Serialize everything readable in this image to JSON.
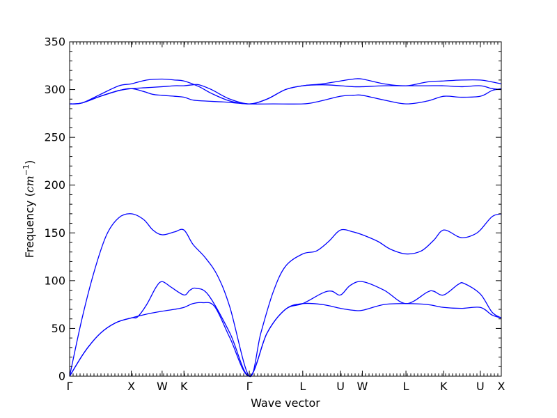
{
  "chart_data": {
    "type": "line",
    "xlabel": "Wave vector",
    "ylabel": "Frequency (",
    "ylabel_math": "cm",
    "ylabel_sup": "−1",
    "ylabel_close": ")",
    "ylim": [
      0,
      350
    ],
    "yticks": [
      0,
      50,
      100,
      150,
      200,
      250,
      300,
      350
    ],
    "ytick_labels": [
      "0",
      "50",
      "100",
      "150",
      "200",
      "250",
      "300",
      "350"
    ],
    "xlim": [
      0,
      7.0
    ],
    "xticks": [
      {
        "label": "Γ",
        "x": 0.0
      },
      {
        "label": "X",
        "x": 1.0
      },
      {
        "label": "W",
        "x": 1.5
      },
      {
        "label": "K",
        "x": 1.854
      },
      {
        "label": "Γ",
        "x": 2.914
      },
      {
        "label": "L",
        "x": 3.78
      },
      {
        "label": "U",
        "x": 4.393
      },
      {
        "label": "W",
        "x": 4.747
      },
      {
        "label": "L",
        "x": 5.454
      },
      {
        "label": "K",
        "x": 6.066
      },
      {
        "label": "U",
        "x": 6.66
      },
      {
        "label": "X",
        "x": 7.0
      }
    ],
    "grid": false,
    "line_color": "#0000ff",
    "series": [
      {
        "values": [
          [
            0,
            0
          ],
          [
            0.25,
            26
          ],
          [
            0.5,
            45
          ],
          [
            0.75,
            56
          ],
          [
            1.0,
            61
          ],
          [
            1.25,
            65
          ],
          [
            1.5,
            68
          ],
          [
            1.7,
            70
          ],
          [
            1.854,
            72
          ],
          [
            2.0,
            76
          ],
          [
            2.15,
            77
          ],
          [
            2.35,
            73
          ],
          [
            2.6,
            40
          ],
          [
            2.914,
            0
          ],
          [
            3.2,
            45
          ],
          [
            3.5,
            70
          ],
          [
            3.78,
            76
          ],
          [
            4.1,
            75
          ],
          [
            4.393,
            71
          ],
          [
            4.6,
            69
          ],
          [
            4.747,
            69
          ],
          [
            5.1,
            75
          ],
          [
            5.454,
            76
          ],
          [
            5.8,
            75
          ],
          [
            6.066,
            72
          ],
          [
            6.35,
            71
          ],
          [
            6.66,
            72
          ],
          [
            6.85,
            64
          ],
          [
            7.0,
            61
          ]
        ]
      },
      {
        "values": [
          [
            0,
            0
          ],
          [
            0.25,
            26
          ],
          [
            0.5,
            45
          ],
          [
            0.75,
            56
          ],
          [
            1.0,
            61
          ],
          [
            1.1,
            62
          ],
          [
            1.25,
            75
          ],
          [
            1.4,
            93
          ],
          [
            1.5,
            99
          ],
          [
            1.65,
            93
          ],
          [
            1.854,
            85
          ],
          [
            1.95,
            90
          ],
          [
            2.05,
            92
          ],
          [
            2.25,
            85
          ],
          [
            2.6,
            45
          ],
          [
            2.914,
            0
          ],
          [
            3.2,
            45
          ],
          [
            3.5,
            70
          ],
          [
            3.78,
            76
          ],
          [
            4.1,
            87
          ],
          [
            4.25,
            89
          ],
          [
            4.393,
            85
          ],
          [
            4.55,
            95
          ],
          [
            4.747,
            99
          ],
          [
            5.1,
            90
          ],
          [
            5.454,
            76
          ],
          [
            5.8,
            88
          ],
          [
            5.9,
            89
          ],
          [
            6.066,
            85
          ],
          [
            6.3,
            96
          ],
          [
            6.4,
            97
          ],
          [
            6.66,
            86
          ],
          [
            6.85,
            67
          ],
          [
            7.0,
            61
          ]
        ]
      },
      {
        "values": [
          [
            0,
            0
          ],
          [
            0.2,
            60
          ],
          [
            0.4,
            110
          ],
          [
            0.6,
            148
          ],
          [
            0.8,
            166
          ],
          [
            1.0,
            170
          ],
          [
            1.2,
            164
          ],
          [
            1.35,
            153
          ],
          [
            1.5,
            148
          ],
          [
            1.7,
            151
          ],
          [
            1.854,
            153
          ],
          [
            2.0,
            138
          ],
          [
            2.2,
            124
          ],
          [
            2.4,
            105
          ],
          [
            2.6,
            72
          ],
          [
            2.914,
            0
          ],
          [
            3.1,
            45
          ],
          [
            3.3,
            88
          ],
          [
            3.5,
            115
          ],
          [
            3.78,
            128
          ],
          [
            4.0,
            131
          ],
          [
            4.2,
            141
          ],
          [
            4.393,
            153
          ],
          [
            4.6,
            151
          ],
          [
            4.747,
            148
          ],
          [
            5.0,
            141
          ],
          [
            5.2,
            133
          ],
          [
            5.454,
            128
          ],
          [
            5.7,
            131
          ],
          [
            5.9,
            142
          ],
          [
            6.066,
            153
          ],
          [
            6.3,
            146
          ],
          [
            6.4,
            145
          ],
          [
            6.55,
            148
          ],
          [
            6.66,
            153
          ],
          [
            6.85,
            167
          ],
          [
            7.0,
            170
          ]
        ]
      },
      {
        "values": [
          [
            0,
            285
          ],
          [
            0.2,
            286
          ],
          [
            0.5,
            295
          ],
          [
            0.8,
            304
          ],
          [
            1.0,
            306
          ],
          [
            1.25,
            310
          ],
          [
            1.5,
            311
          ],
          [
            1.7,
            310
          ],
          [
            1.854,
            309
          ],
          [
            2.1,
            303
          ],
          [
            2.3,
            296
          ],
          [
            2.6,
            288
          ],
          [
            2.914,
            285
          ],
          [
            3.2,
            290
          ],
          [
            3.5,
            300
          ],
          [
            3.78,
            304
          ],
          [
            4.1,
            306
          ],
          [
            4.393,
            309
          ],
          [
            4.6,
            311
          ],
          [
            4.747,
            311
          ],
          [
            5.1,
            306
          ],
          [
            5.454,
            304
          ],
          [
            5.8,
            308
          ],
          [
            6.066,
            309
          ],
          [
            6.35,
            310
          ],
          [
            6.66,
            310
          ],
          [
            6.85,
            308
          ],
          [
            7.0,
            306
          ]
        ]
      },
      {
        "values": [
          [
            0,
            285
          ],
          [
            0.2,
            286
          ],
          [
            0.5,
            293
          ],
          [
            0.8,
            299
          ],
          [
            1.0,
            301
          ],
          [
            1.25,
            302
          ],
          [
            1.5,
            303
          ],
          [
            1.7,
            304
          ],
          [
            1.854,
            304
          ],
          [
            2.0,
            305
          ],
          [
            2.1,
            305
          ],
          [
            2.3,
            300
          ],
          [
            2.6,
            290
          ],
          [
            2.914,
            285
          ],
          [
            3.2,
            290
          ],
          [
            3.5,
            300
          ],
          [
            3.78,
            304
          ],
          [
            4.1,
            305
          ],
          [
            4.393,
            304
          ],
          [
            4.6,
            303
          ],
          [
            4.747,
            303
          ],
          [
            5.1,
            304
          ],
          [
            5.454,
            304
          ],
          [
            5.8,
            304
          ],
          [
            6.066,
            304
          ],
          [
            6.35,
            303
          ],
          [
            6.66,
            304
          ],
          [
            6.85,
            301
          ],
          [
            7.0,
            300
          ]
        ]
      },
      {
        "values": [
          [
            0,
            285
          ],
          [
            0.2,
            286
          ],
          [
            0.5,
            293
          ],
          [
            0.8,
            299
          ],
          [
            1.0,
            301
          ],
          [
            1.2,
            298
          ],
          [
            1.35,
            295
          ],
          [
            1.5,
            294
          ],
          [
            1.7,
            293
          ],
          [
            1.854,
            292
          ],
          [
            2.0,
            289
          ],
          [
            2.2,
            288
          ],
          [
            2.5,
            287
          ],
          [
            2.914,
            285
          ],
          [
            3.3,
            285
          ],
          [
            3.78,
            285
          ],
          [
            4.0,
            287
          ],
          [
            4.393,
            293
          ],
          [
            4.6,
            294
          ],
          [
            4.747,
            294
          ],
          [
            5.1,
            289
          ],
          [
            5.454,
            285
          ],
          [
            5.8,
            288
          ],
          [
            6.066,
            293
          ],
          [
            6.35,
            292
          ],
          [
            6.66,
            293
          ],
          [
            6.85,
            299
          ],
          [
            7.0,
            301
          ]
        ]
      }
    ]
  }
}
